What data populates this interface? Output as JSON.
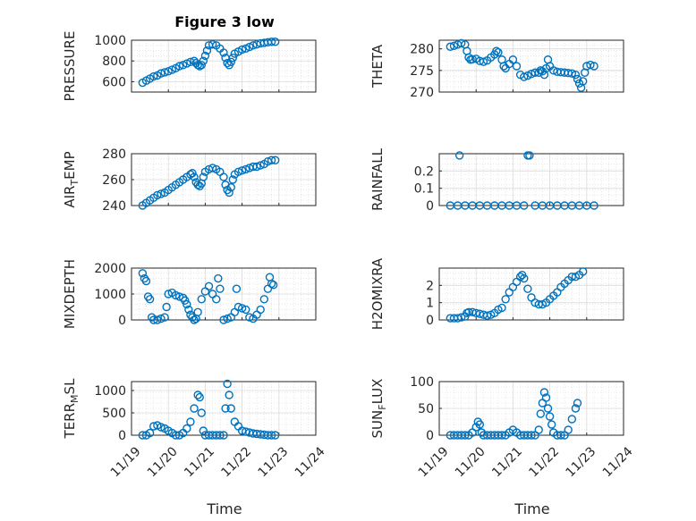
{
  "figure_title": "Figure 3 low",
  "xlabel": "Time",
  "marker_color": "#0072BD",
  "chart_data": [
    {
      "type": "scatter",
      "ylabel": "PRESSURE",
      "ylabel_sub": "",
      "xlim": [
        0,
        5
      ],
      "ylim": [
        500,
        1000
      ],
      "yticks": [
        600,
        800,
        1000
      ],
      "xticklabels": [],
      "points": [
        [
          0.3,
          590
        ],
        [
          0.4,
          610
        ],
        [
          0.5,
          630
        ],
        [
          0.6,
          650
        ],
        [
          0.7,
          660
        ],
        [
          0.8,
          680
        ],
        [
          0.9,
          690
        ],
        [
          1.0,
          700
        ],
        [
          1.1,
          715
        ],
        [
          1.2,
          730
        ],
        [
          1.3,
          750
        ],
        [
          1.4,
          760
        ],
        [
          1.5,
          775
        ],
        [
          1.6,
          790
        ],
        [
          1.7,
          800
        ],
        [
          1.75,
          780
        ],
        [
          1.8,
          760
        ],
        [
          1.85,
          750
        ],
        [
          1.9,
          760
        ],
        [
          1.95,
          800
        ],
        [
          2.0,
          850
        ],
        [
          2.05,
          900
        ],
        [
          2.1,
          950
        ],
        [
          2.2,
          960
        ],
        [
          2.3,
          950
        ],
        [
          2.4,
          920
        ],
        [
          2.5,
          880
        ],
        [
          2.55,
          830
        ],
        [
          2.6,
          780
        ],
        [
          2.65,
          760
        ],
        [
          2.7,
          790
        ],
        [
          2.75,
          830
        ],
        [
          2.8,
          870
        ],
        [
          2.9,
          890
        ],
        [
          3.0,
          910
        ],
        [
          3.1,
          920
        ],
        [
          3.2,
          935
        ],
        [
          3.3,
          950
        ],
        [
          3.4,
          960
        ],
        [
          3.5,
          970
        ],
        [
          3.6,
          975
        ],
        [
          3.7,
          980
        ],
        [
          3.8,
          985
        ],
        [
          3.9,
          985
        ]
      ]
    },
    {
      "type": "scatter",
      "ylabel": "THETA",
      "ylabel_sub": "",
      "xlim": [
        0,
        5
      ],
      "ylim": [
        270,
        282
      ],
      "yticks": [
        270,
        275,
        280
      ],
      "xticklabels": [],
      "points": [
        [
          0.3,
          280.5
        ],
        [
          0.4,
          280.7
        ],
        [
          0.5,
          281.0
        ],
        [
          0.6,
          281.3
        ],
        [
          0.7,
          281.0
        ],
        [
          0.75,
          279.5
        ],
        [
          0.8,
          278.0
        ],
        [
          0.85,
          277.5
        ],
        [
          0.9,
          277.6
        ],
        [
          1.0,
          277.7
        ],
        [
          1.1,
          277.2
        ],
        [
          1.2,
          277.0
        ],
        [
          1.3,
          277.3
        ],
        [
          1.4,
          278.0
        ],
        [
          1.5,
          278.7
        ],
        [
          1.55,
          279.5
        ],
        [
          1.6,
          279.2
        ],
        [
          1.7,
          277.5
        ],
        [
          1.75,
          276.0
        ],
        [
          1.8,
          275.5
        ],
        [
          1.9,
          276.5
        ],
        [
          2.0,
          277.5
        ],
        [
          2.1,
          276.0
        ],
        [
          2.2,
          274.0
        ],
        [
          2.3,
          273.5
        ],
        [
          2.4,
          273.8
        ],
        [
          2.5,
          274.2
        ],
        [
          2.6,
          274.5
        ],
        [
          2.7,
          274.5
        ],
        [
          2.75,
          275.0
        ],
        [
          2.8,
          274.8
        ],
        [
          2.85,
          274.0
        ],
        [
          2.9,
          275.5
        ],
        [
          2.95,
          277.5
        ],
        [
          3.0,
          276.0
        ],
        [
          3.1,
          275.0
        ],
        [
          3.2,
          274.7
        ],
        [
          3.3,
          274.6
        ],
        [
          3.4,
          274.5
        ],
        [
          3.5,
          274.4
        ],
        [
          3.6,
          274.3
        ],
        [
          3.7,
          274.0
        ],
        [
          3.75,
          273.0
        ],
        [
          3.8,
          272.0
        ],
        [
          3.85,
          271.0
        ],
        [
          3.9,
          272.5
        ],
        [
          3.95,
          274.5
        ],
        [
          4.0,
          276.0
        ],
        [
          4.1,
          276.3
        ],
        [
          4.2,
          276.0
        ]
      ]
    },
    {
      "type": "scatter",
      "ylabel": "AIR",
      "ylabel_sub": "T",
      "ylabel_rest": "EMP",
      "xlim": [
        0,
        5
      ],
      "ylim": [
        240,
        280
      ],
      "yticks": [
        240,
        260,
        280
      ],
      "xticklabels": [],
      "points": [
        [
          0.3,
          240
        ],
        [
          0.4,
          242
        ],
        [
          0.5,
          244
        ],
        [
          0.6,
          246
        ],
        [
          0.7,
          248
        ],
        [
          0.8,
          249
        ],
        [
          0.9,
          250
        ],
        [
          1.0,
          252
        ],
        [
          1.1,
          254
        ],
        [
          1.2,
          256
        ],
        [
          1.3,
          258
        ],
        [
          1.4,
          260
        ],
        [
          1.5,
          262
        ],
        [
          1.6,
          264
        ],
        [
          1.65,
          265
        ],
        [
          1.7,
          262
        ],
        [
          1.75,
          258
        ],
        [
          1.8,
          256
        ],
        [
          1.85,
          255
        ],
        [
          1.9,
          257
        ],
        [
          1.95,
          262
        ],
        [
          2.0,
          266
        ],
        [
          2.1,
          268
        ],
        [
          2.2,
          269
        ],
        [
          2.3,
          268
        ],
        [
          2.4,
          266
        ],
        [
          2.5,
          262
        ],
        [
          2.55,
          256
        ],
        [
          2.6,
          252
        ],
        [
          2.65,
          250
        ],
        [
          2.7,
          254
        ],
        [
          2.75,
          260
        ],
        [
          2.8,
          264
        ],
        [
          2.9,
          266
        ],
        [
          3.0,
          267
        ],
        [
          3.1,
          268
        ],
        [
          3.2,
          269
        ],
        [
          3.3,
          270
        ],
        [
          3.4,
          270
        ],
        [
          3.5,
          271
        ],
        [
          3.6,
          272
        ],
        [
          3.7,
          274
        ],
        [
          3.8,
          275
        ],
        [
          3.9,
          275
        ]
      ]
    },
    {
      "type": "scatter",
      "ylabel": "RAINFALL",
      "ylabel_sub": "",
      "xlim": [
        0,
        5
      ],
      "ylim": [
        0,
        0.3
      ],
      "yticks": [
        0,
        0.1,
        0.2
      ],
      "xticklabels": [],
      "points": [
        [
          0.3,
          0
        ],
        [
          0.5,
          0
        ],
        [
          0.55,
          0.29
        ],
        [
          0.7,
          0
        ],
        [
          0.9,
          0
        ],
        [
          1.1,
          0
        ],
        [
          1.3,
          0
        ],
        [
          1.5,
          0
        ],
        [
          1.7,
          0
        ],
        [
          1.9,
          0
        ],
        [
          2.1,
          0
        ],
        [
          2.3,
          0
        ],
        [
          2.4,
          0.29
        ],
        [
          2.45,
          0.29
        ],
        [
          2.6,
          0
        ],
        [
          2.8,
          0
        ],
        [
          3.0,
          0
        ],
        [
          3.2,
          0
        ],
        [
          3.4,
          0
        ],
        [
          3.6,
          0
        ],
        [
          3.8,
          0
        ],
        [
          4.0,
          0
        ],
        [
          4.2,
          0
        ]
      ]
    },
    {
      "type": "scatter",
      "ylabel": "MIXDEPTH",
      "ylabel_sub": "",
      "xlim": [
        0,
        5
      ],
      "ylim": [
        0,
        2000
      ],
      "yticks": [
        0,
        1000,
        2000
      ],
      "xticklabels": [],
      "points": [
        [
          0.3,
          1800
        ],
        [
          0.35,
          1600
        ],
        [
          0.4,
          1500
        ],
        [
          0.45,
          900
        ],
        [
          0.5,
          800
        ],
        [
          0.55,
          100
        ],
        [
          0.6,
          0
        ],
        [
          0.7,
          0
        ],
        [
          0.8,
          50
        ],
        [
          0.9,
          100
        ],
        [
          0.95,
          500
        ],
        [
          1.0,
          1000
        ],
        [
          1.1,
          1050
        ],
        [
          1.2,
          950
        ],
        [
          1.3,
          900
        ],
        [
          1.4,
          850
        ],
        [
          1.45,
          750
        ],
        [
          1.5,
          600
        ],
        [
          1.55,
          400
        ],
        [
          1.6,
          200
        ],
        [
          1.65,
          100
        ],
        [
          1.7,
          0
        ],
        [
          1.75,
          50
        ],
        [
          1.8,
          300
        ],
        [
          1.9,
          800
        ],
        [
          2.0,
          1100
        ],
        [
          2.1,
          1300
        ],
        [
          2.2,
          1000
        ],
        [
          2.3,
          800
        ],
        [
          2.35,
          1600
        ],
        [
          2.4,
          1200
        ],
        [
          2.5,
          0
        ],
        [
          2.6,
          50
        ],
        [
          2.7,
          100
        ],
        [
          2.8,
          300
        ],
        [
          2.85,
          1200
        ],
        [
          2.9,
          500
        ],
        [
          3.0,
          450
        ],
        [
          3.1,
          400
        ],
        [
          3.2,
          100
        ],
        [
          3.3,
          50
        ],
        [
          3.4,
          200
        ],
        [
          3.5,
          400
        ],
        [
          3.6,
          800
        ],
        [
          3.7,
          1200
        ],
        [
          3.75,
          1650
        ],
        [
          3.8,
          1400
        ],
        [
          3.85,
          1350
        ]
      ]
    },
    {
      "type": "scatter",
      "ylabel": "H2OMIXRA",
      "ylabel_sub": "",
      "xlim": [
        0,
        5
      ],
      "ylim": [
        0,
        3
      ],
      "yticks": [
        0,
        1,
        2
      ],
      "xticklabels": [],
      "points": [
        [
          0.3,
          0.1
        ],
        [
          0.4,
          0.1
        ],
        [
          0.5,
          0.1
        ],
        [
          0.6,
          0.15
        ],
        [
          0.7,
          0.2
        ],
        [
          0.75,
          0.4
        ],
        [
          0.8,
          0.45
        ],
        [
          0.9,
          0.45
        ],
        [
          1.0,
          0.4
        ],
        [
          1.1,
          0.35
        ],
        [
          1.2,
          0.3
        ],
        [
          1.3,
          0.25
        ],
        [
          1.4,
          0.3
        ],
        [
          1.5,
          0.4
        ],
        [
          1.6,
          0.6
        ],
        [
          1.7,
          0.7
        ],
        [
          1.8,
          1.2
        ],
        [
          1.9,
          1.6
        ],
        [
          2.0,
          1.9
        ],
        [
          2.1,
          2.2
        ],
        [
          2.2,
          2.5
        ],
        [
          2.25,
          2.6
        ],
        [
          2.3,
          2.4
        ],
        [
          2.4,
          1.8
        ],
        [
          2.5,
          1.3
        ],
        [
          2.6,
          1.0
        ],
        [
          2.7,
          0.9
        ],
        [
          2.8,
          0.9
        ],
        [
          2.9,
          1.0
        ],
        [
          3.0,
          1.2
        ],
        [
          3.1,
          1.4
        ],
        [
          3.2,
          1.6
        ],
        [
          3.3,
          1.9
        ],
        [
          3.4,
          2.1
        ],
        [
          3.5,
          2.3
        ],
        [
          3.6,
          2.5
        ],
        [
          3.7,
          2.5
        ],
        [
          3.8,
          2.6
        ],
        [
          3.9,
          2.8
        ]
      ]
    },
    {
      "type": "scatter",
      "ylabel": "TERR",
      "ylabel_sub": "M",
      "ylabel_rest": "SL",
      "xlim": [
        0,
        5
      ],
      "ylim": [
        0,
        1200
      ],
      "yticks": [
        0,
        500,
        1000
      ],
      "xticklabels": [
        "11/19",
        "11/20",
        "11/21",
        "11/22",
        "11/23",
        "11/24"
      ],
      "points": [
        [
          0.3,
          0
        ],
        [
          0.4,
          0
        ],
        [
          0.5,
          50
        ],
        [
          0.6,
          200
        ],
        [
          0.7,
          220
        ],
        [
          0.8,
          180
        ],
        [
          0.9,
          150
        ],
        [
          1.0,
          100
        ],
        [
          1.1,
          50
        ],
        [
          1.2,
          0
        ],
        [
          1.3,
          0
        ],
        [
          1.4,
          50
        ],
        [
          1.5,
          150
        ],
        [
          1.6,
          300
        ],
        [
          1.7,
          600
        ],
        [
          1.8,
          900
        ],
        [
          1.85,
          850
        ],
        [
          1.9,
          500
        ],
        [
          1.95,
          100
        ],
        [
          2.0,
          0
        ],
        [
          2.1,
          0
        ],
        [
          2.2,
          0
        ],
        [
          2.3,
          0
        ],
        [
          2.4,
          0
        ],
        [
          2.5,
          0
        ],
        [
          2.55,
          600
        ],
        [
          2.6,
          1150
        ],
        [
          2.65,
          900
        ],
        [
          2.7,
          600
        ],
        [
          2.8,
          300
        ],
        [
          2.9,
          200
        ],
        [
          3.0,
          100
        ],
        [
          3.1,
          80
        ],
        [
          3.2,
          60
        ],
        [
          3.3,
          40
        ],
        [
          3.4,
          30
        ],
        [
          3.5,
          20
        ],
        [
          3.6,
          10
        ],
        [
          3.7,
          0
        ],
        [
          3.8,
          0
        ],
        [
          3.9,
          0
        ]
      ]
    },
    {
      "type": "scatter",
      "ylabel": "SUN",
      "ylabel_sub": "F",
      "ylabel_rest": "LUX",
      "xlim": [
        0,
        5
      ],
      "ylim": [
        0,
        100
      ],
      "yticks": [
        0,
        50,
        100
      ],
      "xticklabels": [
        "11/19",
        "11/20",
        "11/21",
        "11/22",
        "11/23",
        "11/24"
      ],
      "points": [
        [
          0.3,
          0
        ],
        [
          0.4,
          0
        ],
        [
          0.5,
          0
        ],
        [
          0.6,
          0
        ],
        [
          0.7,
          0
        ],
        [
          0.8,
          0
        ],
        [
          0.9,
          5
        ],
        [
          1.0,
          15
        ],
        [
          1.05,
          25
        ],
        [
          1.1,
          20
        ],
        [
          1.15,
          5
        ],
        [
          1.2,
          0
        ],
        [
          1.3,
          0
        ],
        [
          1.4,
          0
        ],
        [
          1.5,
          0
        ],
        [
          1.6,
          0
        ],
        [
          1.7,
          0
        ],
        [
          1.8,
          0
        ],
        [
          1.9,
          5
        ],
        [
          2.0,
          10
        ],
        [
          2.1,
          5
        ],
        [
          2.2,
          0
        ],
        [
          2.3,
          0
        ],
        [
          2.4,
          0
        ],
        [
          2.5,
          0
        ],
        [
          2.6,
          0
        ],
        [
          2.7,
          10
        ],
        [
          2.75,
          40
        ],
        [
          2.8,
          60
        ],
        [
          2.85,
          80
        ],
        [
          2.9,
          70
        ],
        [
          2.95,
          50
        ],
        [
          3.0,
          35
        ],
        [
          3.05,
          20
        ],
        [
          3.1,
          5
        ],
        [
          3.2,
          0
        ],
        [
          3.3,
          0
        ],
        [
          3.4,
          0
        ],
        [
          3.5,
          10
        ],
        [
          3.6,
          30
        ],
        [
          3.7,
          50
        ],
        [
          3.75,
          60
        ]
      ]
    }
  ]
}
